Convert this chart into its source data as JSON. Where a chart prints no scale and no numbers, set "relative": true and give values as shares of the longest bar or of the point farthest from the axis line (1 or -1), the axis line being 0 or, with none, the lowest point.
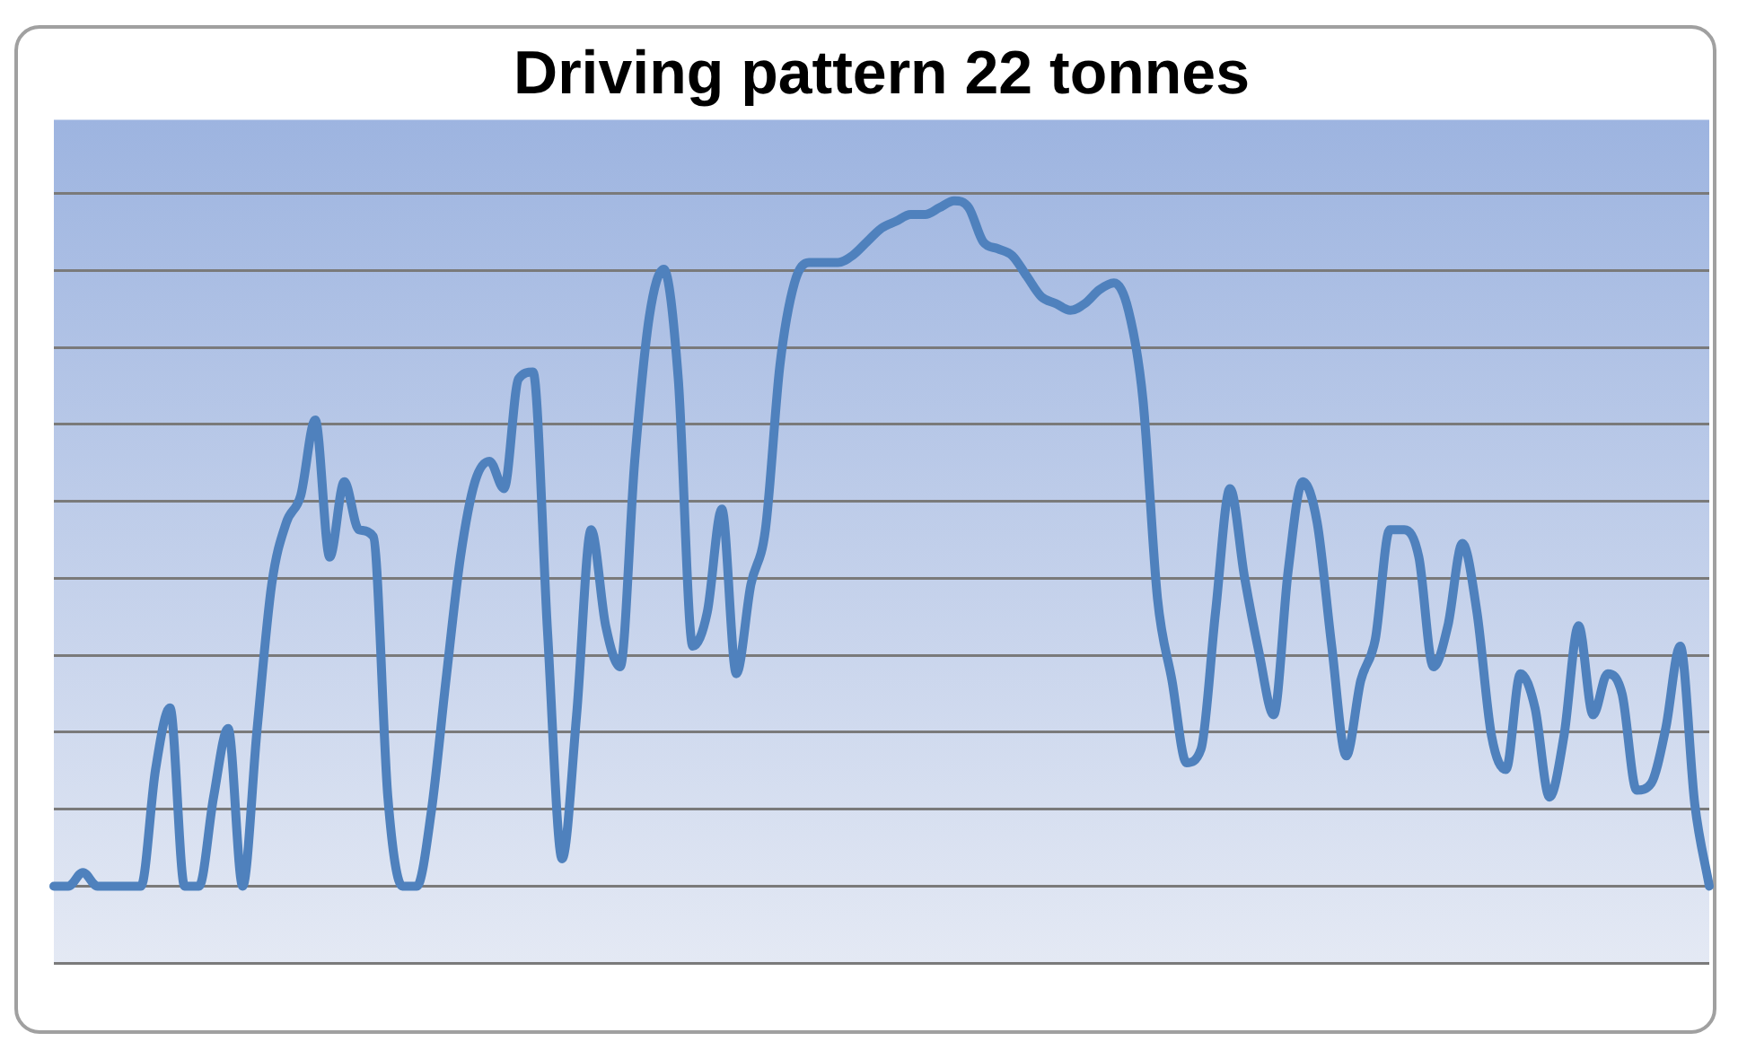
{
  "chart_data": {
    "type": "line",
    "title": "Driving pattern 22 tonnes",
    "relative": true,
    "grid": "y",
    "marker": "none",
    "line_style": "solid",
    "categories": [
      null,
      null,
      null,
      null,
      null,
      null,
      null,
      null,
      null,
      null,
      null,
      null,
      null,
      null,
      null,
      null,
      null,
      null,
      null,
      null,
      null,
      null,
      null,
      null,
      null,
      null,
      null,
      null,
      null,
      null,
      null,
      null,
      null,
      null,
      null,
      null,
      null,
      null,
      null,
      null,
      null,
      null,
      null,
      null,
      null,
      null,
      null,
      null,
      null,
      null,
      null,
      null,
      null,
      null,
      null,
      null,
      null,
      null,
      null,
      null,
      null,
      null,
      null,
      null,
      null,
      null,
      null,
      null,
      null,
      null,
      null,
      null,
      null,
      null,
      null,
      null,
      null,
      null,
      null,
      null,
      null,
      null,
      null,
      null,
      null,
      null,
      null,
      null,
      null,
      null,
      null,
      null,
      null,
      null,
      null,
      null,
      null,
      null,
      null,
      null,
      null,
      null,
      null,
      null,
      null,
      null,
      null,
      null,
      null,
      null,
      null,
      null,
      null,
      null,
      null
    ],
    "series": [
      {
        "color": "#4f81bd",
        "values": [
          0,
          0,
          0.02,
          0,
          0,
          0,
          0,
          0.17,
          0.26,
          0,
          0,
          0.13,
          0.23,
          0,
          0.23,
          0.44,
          0.53,
          0.57,
          0.68,
          0.48,
          0.59,
          0.52,
          0.51,
          0.13,
          0,
          0,
          0.11,
          0.3,
          0.48,
          0.59,
          0.62,
          0.58,
          0.74,
          0.75,
          0.37,
          0.04,
          0.25,
          0.52,
          0.38,
          0.32,
          0.62,
          0.83,
          0.9,
          0.74,
          0.35,
          0.4,
          0.55,
          0.31,
          0.44,
          0.52,
          0.76,
          0.88,
          0.91,
          0.91,
          0.91,
          0.92,
          0.94,
          0.96,
          0.97,
          0.98,
          0.98,
          0.99,
          1,
          0.99,
          0.94,
          0.93,
          0.92,
          0.89,
          0.86,
          0.85,
          0.84,
          0.85,
          0.87,
          0.88,
          0.84,
          0.71,
          0.42,
          0.3,
          0.18,
          0.2,
          0.4,
          0.58,
          0.45,
          0.34,
          0.25,
          0.46,
          0.59,
          0.53,
          0.35,
          0.19,
          0.3,
          0.36,
          0.52,
          0.52,
          0.48,
          0.32,
          0.38,
          0.5,
          0.4,
          0.22,
          0.17,
          0.31,
          0.26,
          0.13,
          0.22,
          0.38,
          0.25,
          0.31,
          0.28,
          0.14,
          0.15,
          0.23,
          0.35,
          0.12,
          0
        ]
      }
    ]
  }
}
